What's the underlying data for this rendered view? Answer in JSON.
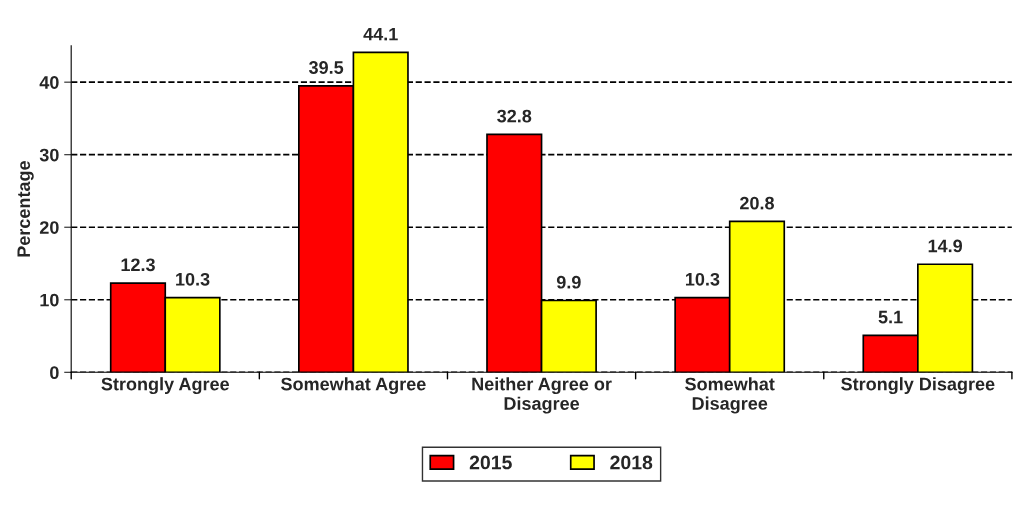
{
  "chart_data": {
    "type": "bar",
    "ylabel": "Percentage",
    "categories": [
      "Strongly Agree",
      "Somewhat Agree",
      "Neither Agree or\nDisagree",
      "Somewhat\nDisagree",
      "Strongly Disagree"
    ],
    "series": [
      {
        "name": "2015",
        "color": "#ff0000",
        "values": [
          12.3,
          39.5,
          32.8,
          10.3,
          5.1
        ]
      },
      {
        "name": "2018",
        "color": "#ffff00",
        "values": [
          10.3,
          44.1,
          9.9,
          20.8,
          14.9
        ]
      }
    ],
    "ylim": [
      0,
      45
    ],
    "yticks": [
      0,
      10,
      20,
      30,
      40
    ],
    "grid": "y",
    "legend": "bottom",
    "data_labels": true
  }
}
